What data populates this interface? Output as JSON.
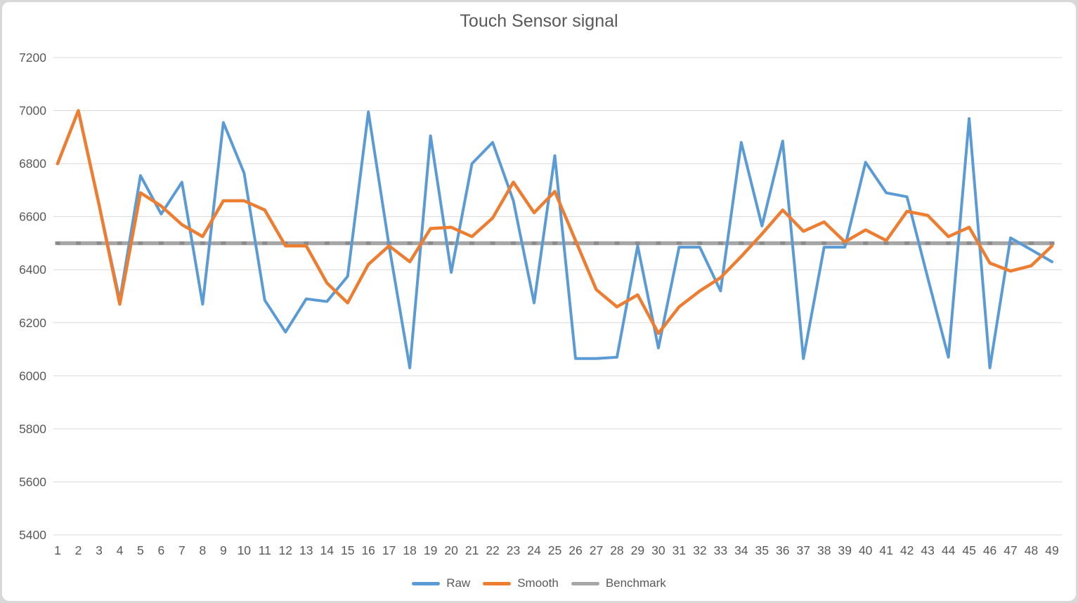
{
  "frame": {
    "background_color": "#ffffff",
    "border_color": "#d8d8d8"
  },
  "colors": {
    "raw_line": "#5B9BD5",
    "smooth_line": "#ED7D31",
    "benchmark_line": "#A6A6A6",
    "benchmark_marker": "#8C8C8C",
    "gridline": "#D9D9D9",
    "text": "#595959"
  },
  "legend": {
    "position": "bottom",
    "items": [
      "Raw",
      "Smooth",
      "Benchmark"
    ]
  },
  "chart_data": {
    "type": "line",
    "title": "Touch Sensor signal",
    "xlabel": "",
    "ylabel": "",
    "ylim": [
      5400,
      7200
    ],
    "ytick_step": 200,
    "yticks": [
      5400,
      5600,
      5800,
      6000,
      6200,
      6400,
      6600,
      6800,
      7000,
      7200
    ],
    "grid": true,
    "legend_position": "bottom",
    "categories": [
      1,
      2,
      3,
      4,
      5,
      6,
      7,
      8,
      9,
      10,
      11,
      12,
      13,
      14,
      15,
      16,
      17,
      18,
      19,
      20,
      21,
      22,
      23,
      24,
      25,
      26,
      27,
      28,
      29,
      30,
      31,
      32,
      33,
      34,
      35,
      36,
      37,
      38,
      39,
      40,
      41,
      42,
      43,
      44,
      45,
      46,
      47,
      48,
      49
    ],
    "series": [
      {
        "name": "Raw",
        "color": "#5B9BD5",
        "width": 4,
        "values": [
          6800,
          7000,
          6645,
          6285,
          6755,
          6610,
          6730,
          6270,
          6955,
          6765,
          6285,
          6165,
          6290,
          6280,
          6375,
          6995,
          6490,
          6030,
          6905,
          6390,
          6800,
          6880,
          6660,
          6275,
          6830,
          6065,
          6065,
          6070,
          6490,
          6105,
          6485,
          6485,
          6320,
          6880,
          6565,
          6885,
          6065,
          6485,
          6485,
          6805,
          6690,
          6675,
          6370,
          6070,
          6970,
          6030,
          6520,
          6475,
          6430
        ]
      },
      {
        "name": "Smooth",
        "color": "#ED7D31",
        "width": 4.5,
        "values": [
          6800,
          7000,
          6645,
          6270,
          6690,
          6640,
          6570,
          6525,
          6660,
          6660,
          6625,
          6490,
          6490,
          6350,
          6275,
          6420,
          6490,
          6430,
          6555,
          6560,
          6525,
          6595,
          6730,
          6615,
          6695,
          6510,
          6325,
          6260,
          6305,
          6160,
          6260,
          6320,
          6370,
          6450,
          6535,
          6625,
          6545,
          6580,
          6505,
          6550,
          6510,
          6620,
          6605,
          6525,
          6560,
          6425,
          6395,
          6415,
          6490
        ]
      },
      {
        "name": "Benchmark",
        "color": "#A6A6A6",
        "width": 5.5,
        "marker": true,
        "marker_color": "#8C8C8C",
        "constant_value": 6500,
        "values": [
          6500,
          6500,
          6500,
          6500,
          6500,
          6500,
          6500,
          6500,
          6500,
          6500,
          6500,
          6500,
          6500,
          6500,
          6500,
          6500,
          6500,
          6500,
          6500,
          6500,
          6500,
          6500,
          6500,
          6500,
          6500,
          6500,
          6500,
          6500,
          6500,
          6500,
          6500,
          6500,
          6500,
          6500,
          6500,
          6500,
          6500,
          6500,
          6500,
          6500,
          6500,
          6500,
          6500,
          6500,
          6500,
          6500,
          6500,
          6500,
          6500
        ]
      }
    ]
  }
}
